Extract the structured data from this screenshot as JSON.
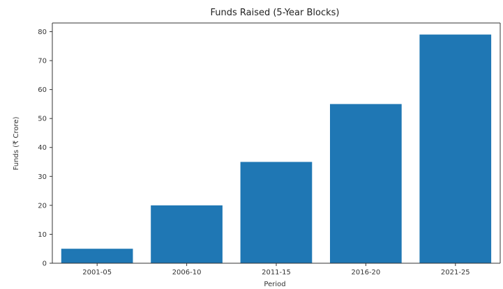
{
  "chart_data": {
    "type": "bar",
    "title": "Funds Raised (5-Year Blocks)",
    "xlabel": "Period",
    "ylabel": "Funds (₹ Crore)",
    "categories": [
      "2001-05",
      "2006-10",
      "2011-15",
      "2016-20",
      "2021-25"
    ],
    "values": [
      5,
      20,
      35,
      55,
      79
    ],
    "ylim": [
      0,
      83
    ],
    "yticks": [
      0,
      10,
      20,
      30,
      40,
      50,
      60,
      70,
      80
    ],
    "grid": false,
    "colors": {
      "bar": "#1f77b4",
      "axis": "#333333"
    }
  }
}
